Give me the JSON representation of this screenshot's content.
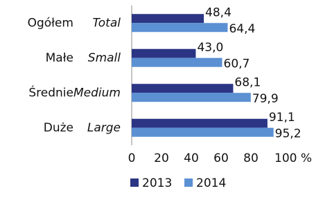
{
  "chart_data": {
    "type": "bar",
    "orientation": "horizontal",
    "categories": [
      "Ogółem",
      "Małe",
      "Średnie",
      "Duże"
    ],
    "categories_en": [
      "Total",
      "Small",
      "Medium",
      "Large"
    ],
    "series": [
      {
        "name": "2013",
        "color": "#2b3584",
        "values": [
          48.4,
          43.0,
          68.1,
          91.1
        ],
        "value_labels": [
          "48,4",
          "43,0",
          "68,1",
          "91,1"
        ]
      },
      {
        "name": "2014",
        "color": "#5b90d3",
        "values": [
          64.4,
          60.7,
          79.9,
          95.2
        ],
        "value_labels": [
          "64,4",
          "60,7",
          "79,9",
          "95,2"
        ]
      }
    ],
    "xlim": [
      0,
      100
    ],
    "xticks": [
      0,
      20,
      40,
      60,
      80,
      {
        "value": 100,
        "label": "100 %"
      }
    ]
  }
}
